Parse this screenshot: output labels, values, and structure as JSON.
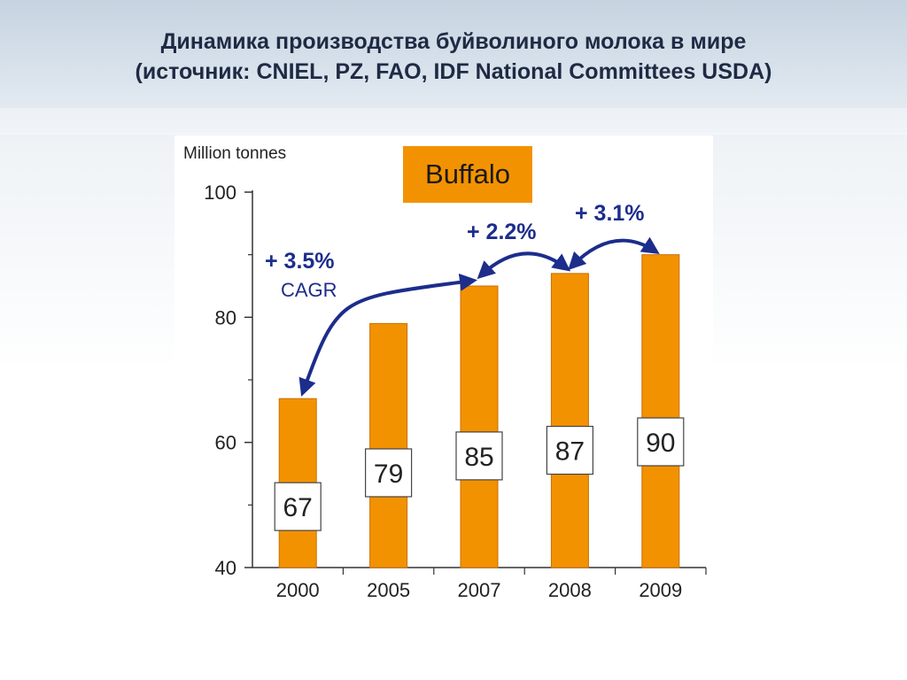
{
  "slide": {
    "title_line1": "Динамика производства буйволиного молока в мире",
    "title_line2": "(источник: CNIEL, PZ, FAO, IDF National Committees USDA)"
  },
  "chart_data": {
    "type": "bar",
    "title": "Buffalo",
    "ylabel": "Million tonnes",
    "categories": [
      "2000",
      "2005",
      "2007",
      "2008",
      "2009"
    ],
    "values": [
      67,
      79,
      85,
      87,
      90
    ],
    "ylim": [
      40,
      100
    ],
    "yticks": [
      40,
      60,
      80,
      100
    ],
    "bar_color": "#f39200",
    "annotation_color": "#1c2d8c",
    "annotations": [
      {
        "text": "+ 3.5%",
        "sub": "CAGR",
        "from": "2000",
        "to": "2007"
      },
      {
        "text": "+ 2.2%",
        "from": "2007",
        "to": "2008"
      },
      {
        "text": "+ 3.1%",
        "from": "2008",
        "to": "2009"
      }
    ]
  }
}
